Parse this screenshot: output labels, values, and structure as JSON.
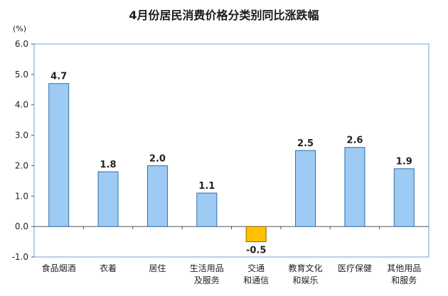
{
  "chart_data": {
    "type": "bar",
    "title": "4月份居民消费价格分类别同比涨跌幅",
    "ylabel": "(%)",
    "xlabel": "",
    "ylim": [
      -1.0,
      6.0
    ],
    "yticks": [
      "6.0",
      "5.0",
      "4.0",
      "3.0",
      "2.0",
      "1.0",
      "0.0",
      "-1.0"
    ],
    "categories": [
      [
        "食品烟酒"
      ],
      [
        "衣着"
      ],
      [
        "居住"
      ],
      [
        "生活用品",
        "及服务"
      ],
      [
        "交通",
        "和通信"
      ],
      [
        "教育文化",
        "和娱乐"
      ],
      [
        "医疗保健"
      ],
      [
        "其他用品",
        "和服务"
      ]
    ],
    "values": [
      4.7,
      1.8,
      2.0,
      1.1,
      -0.5,
      2.5,
      2.6,
      1.9
    ],
    "value_labels": [
      "4.7",
      "1.8",
      "2.0",
      "1.1",
      "-0.5",
      "2.5",
      "2.6",
      "1.9"
    ],
    "colors": {
      "positive": "#9ecbf3",
      "negative": "#ffc000",
      "bar_stroke": "#2f6ea8",
      "negative_stroke": "#8c6a00",
      "frame": "#7a9fc4"
    },
    "grid": false,
    "legend": "none"
  }
}
